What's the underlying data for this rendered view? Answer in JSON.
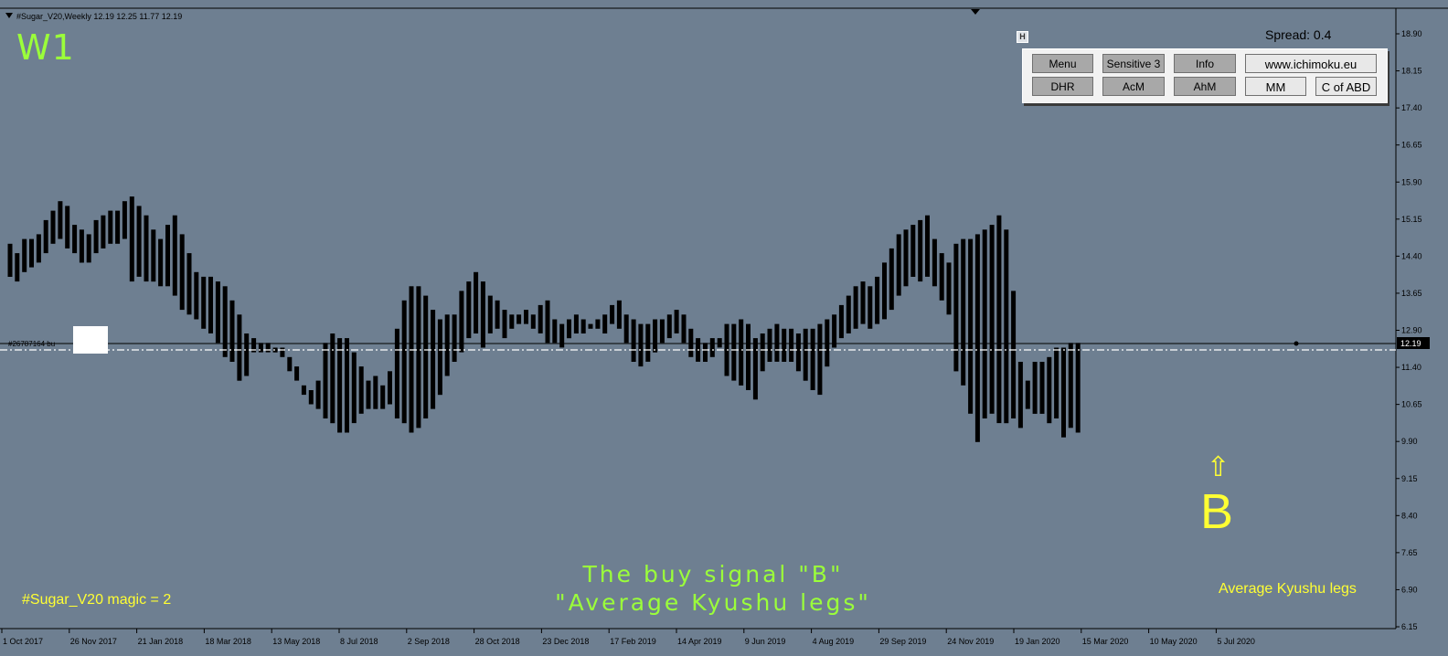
{
  "header": {
    "symbol_info": "#Sugar_V20,Weekly  12.19 12.25 11.77 12.19",
    "timeframe": "W1"
  },
  "toolbar": {
    "spread": "Spread: 0.4",
    "panel_icon": "H",
    "buttons_row1": [
      "Menu",
      "Sensitive 3",
      "Info",
      "www.ichimoku.eu"
    ],
    "buttons_row2": [
      "DHR",
      "AcM",
      "AhM",
      "MM",
      "C of ABD"
    ]
  },
  "order_line": {
    "label": "#26787164 bu"
  },
  "annotations": {
    "signal_arrow": "⇧",
    "signal_letter": "B",
    "caption_line1": "The buy signal \"B\"",
    "caption_line2": "\"Average Kyushu legs\"",
    "magic": "#Sugar_V20  magic = 2",
    "indicator_name": "Average Kyushu legs"
  },
  "colors": {
    "background": "#6e7f91",
    "bars": "#000000",
    "timeframe_label": "#9bff3a",
    "signal": "#ffff33",
    "caption": "#9bff3a"
  },
  "chart_data": {
    "type": "bar",
    "ohlc_style": "high-low bars",
    "y_ticks": [
      "18.90",
      "18.15",
      "17.40",
      "16.65",
      "15.90",
      "15.15",
      "14.40",
      "13.65",
      "12.90",
      "12.19",
      "11.40",
      "10.65",
      "9.90",
      "9.15",
      "8.40",
      "7.65",
      "6.90",
      "6.15"
    ],
    "current_price": "12.19",
    "ylim": [
      6.15,
      18.9
    ],
    "x_ticks": [
      "1 Oct 2017",
      "26 Nov 2017",
      "21 Jan 2018",
      "18 Mar 2018",
      "13 May 2018",
      "8 Jul 2018",
      "2 Sep 2018",
      "28 Oct 2018",
      "23 Dec 2018",
      "17 Feb 2019",
      "14 Apr 2019",
      "9 Jun 2019",
      "4 Aug 2019",
      "29 Sep 2019",
      "24 Nov 2019",
      "19 Jan 2020",
      "15 Mar 2020",
      "10 May 2020",
      "5 Jul 2020"
    ],
    "bars": [
      [
        14.3,
        13.6
      ],
      [
        14.1,
        13.5
      ],
      [
        14.4,
        13.7
      ],
      [
        14.4,
        13.8
      ],
      [
        14.5,
        13.9
      ],
      [
        14.8,
        14.1
      ],
      [
        15.0,
        14.3
      ],
      [
        15.2,
        14.4
      ],
      [
        15.1,
        14.2
      ],
      [
        14.7,
        14.1
      ],
      [
        14.6,
        13.9
      ],
      [
        14.5,
        13.9
      ],
      [
        14.8,
        14.1
      ],
      [
        14.9,
        14.2
      ],
      [
        15.0,
        14.3
      ],
      [
        15.0,
        14.3
      ],
      [
        15.2,
        14.4
      ],
      [
        15.3,
        13.5
      ],
      [
        15.1,
        13.6
      ],
      [
        14.9,
        13.5
      ],
      [
        14.6,
        13.5
      ],
      [
        14.4,
        13.4
      ],
      [
        14.7,
        13.4
      ],
      [
        14.9,
        13.2
      ],
      [
        14.5,
        12.9
      ],
      [
        14.1,
        12.8
      ],
      [
        13.7,
        12.7
      ],
      [
        13.6,
        12.5
      ],
      [
        13.6,
        12.4
      ],
      [
        13.5,
        12.2
      ],
      [
        13.4,
        11.9
      ],
      [
        13.1,
        11.8
      ],
      [
        12.8,
        11.4
      ],
      [
        12.4,
        11.5
      ],
      [
        12.3,
        12.0
      ],
      [
        12.2,
        12.0
      ],
      [
        12.2,
        12.0
      ],
      [
        12.1,
        12.0
      ],
      [
        12.1,
        11.9
      ],
      [
        11.9,
        11.6
      ],
      [
        11.7,
        11.4
      ],
      [
        11.3,
        11.1
      ],
      [
        11.2,
        10.9
      ],
      [
        11.4,
        10.8
      ],
      [
        12.2,
        10.6
      ],
      [
        12.4,
        10.5
      ],
      [
        12.3,
        10.3
      ],
      [
        12.3,
        10.3
      ],
      [
        12.0,
        10.5
      ],
      [
        11.7,
        10.7
      ],
      [
        11.4,
        10.8
      ],
      [
        11.5,
        10.8
      ],
      [
        11.3,
        10.8
      ],
      [
        11.6,
        10.9
      ],
      [
        12.5,
        10.6
      ],
      [
        13.1,
        10.5
      ],
      [
        13.4,
        10.3
      ],
      [
        13.4,
        10.4
      ],
      [
        13.2,
        10.6
      ],
      [
        12.9,
        10.8
      ],
      [
        12.7,
        11.1
      ],
      [
        12.8,
        11.5
      ],
      [
        12.8,
        11.8
      ],
      [
        13.3,
        12.0
      ],
      [
        13.5,
        12.3
      ],
      [
        13.7,
        12.4
      ],
      [
        13.5,
        12.1
      ],
      [
        13.2,
        12.4
      ],
      [
        13.1,
        12.5
      ],
      [
        12.9,
        12.3
      ],
      [
        12.8,
        12.5
      ],
      [
        12.8,
        12.6
      ],
      [
        12.9,
        12.6
      ],
      [
        12.8,
        12.5
      ],
      [
        13.0,
        12.4
      ],
      [
        13.1,
        12.2
      ],
      [
        12.7,
        12.2
      ],
      [
        12.6,
        12.1
      ],
      [
        12.7,
        12.3
      ],
      [
        12.8,
        12.4
      ],
      [
        12.7,
        12.4
      ],
      [
        12.6,
        12.5
      ],
      [
        12.7,
        12.5
      ],
      [
        12.8,
        12.4
      ],
      [
        13.0,
        12.6
      ],
      [
        13.1,
        12.5
      ],
      [
        12.8,
        12.2
      ],
      [
        12.7,
        11.8
      ],
      [
        12.6,
        11.7
      ],
      [
        12.6,
        11.8
      ],
      [
        12.7,
        12.0
      ],
      [
        12.7,
        12.2
      ],
      [
        12.8,
        12.3
      ],
      [
        12.9,
        12.4
      ],
      [
        12.8,
        12.2
      ],
      [
        12.5,
        11.9
      ],
      [
        12.3,
        11.8
      ],
      [
        12.2,
        11.8
      ],
      [
        12.3,
        11.9
      ],
      [
        12.3,
        12.1
      ],
      [
        12.6,
        11.5
      ],
      [
        12.6,
        11.4
      ],
      [
        12.7,
        11.3
      ],
      [
        12.6,
        11.2
      ],
      [
        12.3,
        11.0
      ],
      [
        12.4,
        11.6
      ],
      [
        12.5,
        11.8
      ],
      [
        12.6,
        11.8
      ],
      [
        12.5,
        11.8
      ],
      [
        12.5,
        11.8
      ],
      [
        12.4,
        11.6
      ],
      [
        12.5,
        11.4
      ],
      [
        12.5,
        11.2
      ],
      [
        12.6,
        11.1
      ],
      [
        12.7,
        11.7
      ],
      [
        12.8,
        12.1
      ],
      [
        13.0,
        12.3
      ],
      [
        13.2,
        12.4
      ],
      [
        13.4,
        12.5
      ],
      [
        13.5,
        12.6
      ],
      [
        13.4,
        12.5
      ],
      [
        13.6,
        12.6
      ],
      [
        13.9,
        12.7
      ],
      [
        14.2,
        12.9
      ],
      [
        14.5,
        13.2
      ],
      [
        14.6,
        13.4
      ],
      [
        14.7,
        13.6
      ],
      [
        14.8,
        13.5
      ],
      [
        14.9,
        13.6
      ],
      [
        14.4,
        13.4
      ],
      [
        14.1,
        13.1
      ],
      [
        13.9,
        12.8
      ],
      [
        14.3,
        11.6
      ],
      [
        14.4,
        11.3
      ],
      [
        14.4,
        10.7
      ],
      [
        14.5,
        10.1
      ],
      [
        14.6,
        10.6
      ],
      [
        14.7,
        10.7
      ],
      [
        14.9,
        10.5
      ],
      [
        14.6,
        10.5
      ],
      [
        13.3,
        10.6
      ],
      [
        11.8,
        10.4
      ],
      [
        11.4,
        10.8
      ],
      [
        11.8,
        10.7
      ],
      [
        11.8,
        10.7
      ],
      [
        11.9,
        10.5
      ],
      [
        12.1,
        10.6
      ],
      [
        12.1,
        10.2
      ],
      [
        12.2,
        10.4
      ],
      [
        12.2,
        10.3
      ]
    ]
  }
}
